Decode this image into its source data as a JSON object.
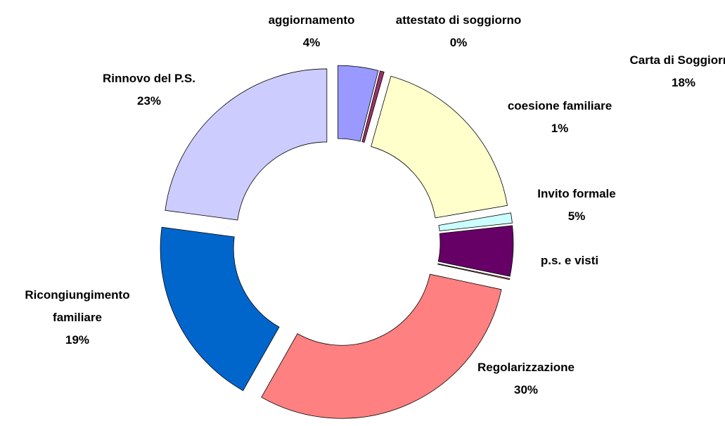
{
  "chart_data": {
    "type": "donut",
    "categories": [
      "aggiornamento",
      "attestato di soggiorno",
      "Carta di Soggiorno",
      "coesione familiare",
      "Invito formale",
      "p.s. e visti",
      "Regolarizzazione",
      "Ricongiungimento familiare",
      "Rinnovo del P.S."
    ],
    "values": [
      4,
      0.4,
      18,
      1,
      5,
      0.1,
      30,
      19,
      23
    ],
    "value_labels": [
      "4%",
      "0%",
      "18%",
      "1%",
      "5%",
      null,
      "30%",
      "19%",
      "23%"
    ],
    "colors": [
      "#9999ff",
      "#993366",
      "#ffffcc",
      "#ccffff",
      "#660066",
      "#ff8080",
      "#ff8080",
      "#0066cc",
      "#ccccff"
    ],
    "exploded": true
  }
}
